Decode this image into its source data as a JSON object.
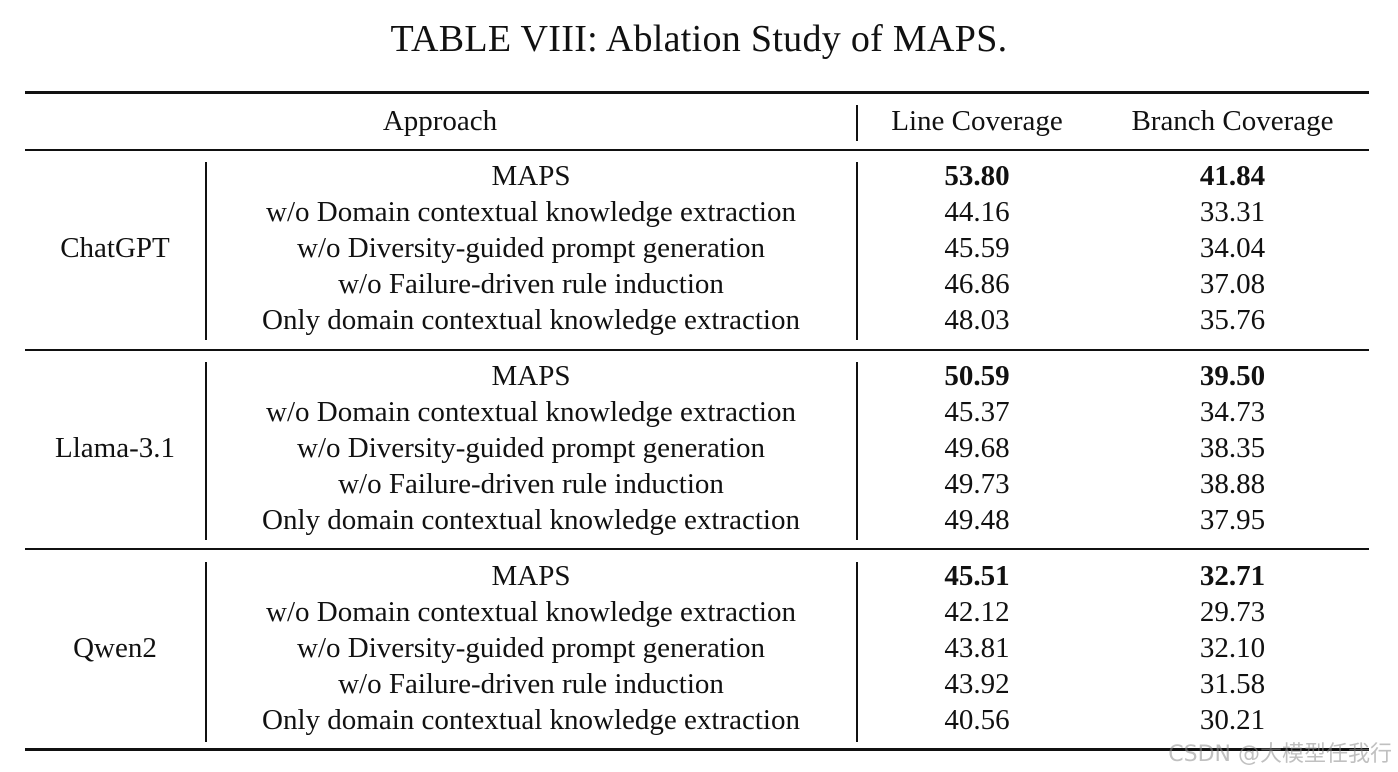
{
  "caption": "TABLE VIII: Ablation Study of MAPS.",
  "headers": {
    "approach": "Approach",
    "line": "Line Coverage",
    "branch": "Branch Coverage"
  },
  "groups": [
    {
      "model": "ChatGPT",
      "rows": [
        {
          "approach": "MAPS",
          "line": "53.80",
          "branch": "41.84",
          "bold": true
        },
        {
          "approach": "w/o Domain contextual knowledge extraction",
          "line": "44.16",
          "branch": "33.31"
        },
        {
          "approach": "w/o Diversity-guided prompt generation",
          "line": "45.59",
          "branch": "34.04"
        },
        {
          "approach": "w/o Failure-driven rule induction",
          "line": "46.86",
          "branch": "37.08"
        },
        {
          "approach": "Only domain contextual knowledge extraction",
          "line": "48.03",
          "branch": "35.76"
        }
      ]
    },
    {
      "model": "Llama-3.1",
      "rows": [
        {
          "approach": "MAPS",
          "line": "50.59",
          "branch": "39.50",
          "bold": true
        },
        {
          "approach": "w/o Domain contextual knowledge extraction",
          "line": "45.37",
          "branch": "34.73"
        },
        {
          "approach": "w/o Diversity-guided prompt generation",
          "line": "49.68",
          "branch": "38.35"
        },
        {
          "approach": "w/o Failure-driven rule induction",
          "line": "49.73",
          "branch": "38.88"
        },
        {
          "approach": "Only domain contextual knowledge extraction",
          "line": "49.48",
          "branch": "37.95"
        }
      ]
    },
    {
      "model": "Qwen2",
      "rows": [
        {
          "approach": "MAPS",
          "line": "45.51",
          "branch": "32.71",
          "bold": true
        },
        {
          "approach": "w/o Domain contextual knowledge extraction",
          "line": "42.12",
          "branch": "29.73"
        },
        {
          "approach": "w/o Diversity-guided prompt generation",
          "line": "43.81",
          "branch": "32.10"
        },
        {
          "approach": "w/o Failure-driven rule induction",
          "line": "43.92",
          "branch": "31.58"
        },
        {
          "approach": "Only domain contextual knowledge extraction",
          "line": "40.56",
          "branch": "30.21"
        }
      ]
    }
  ],
  "watermark": "CSDN @大模型任我行"
}
